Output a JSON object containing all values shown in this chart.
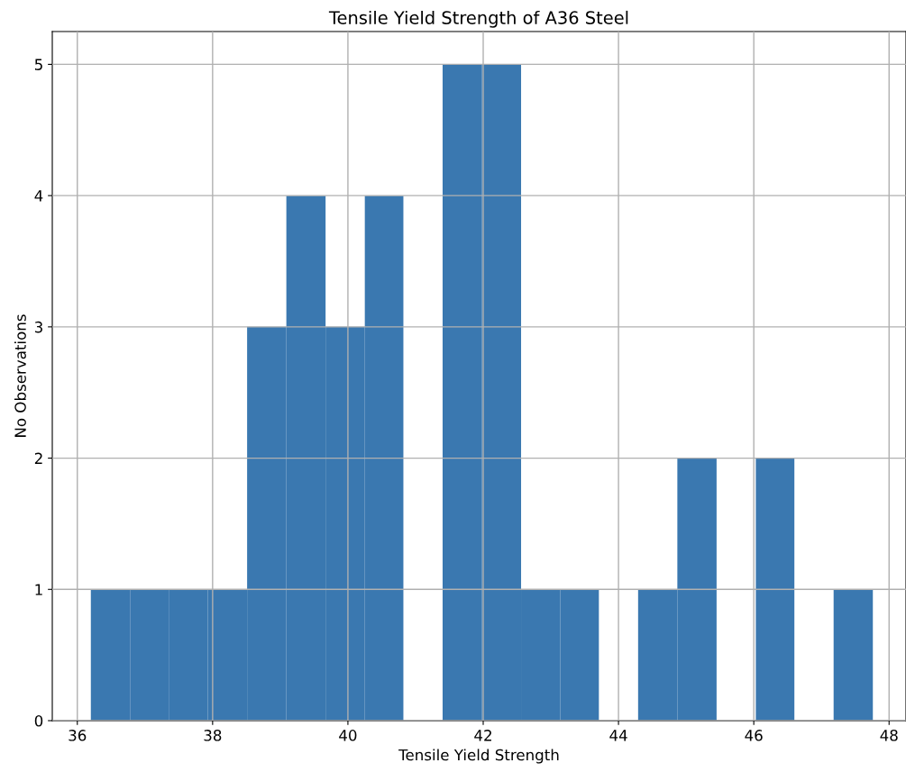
{
  "chart_data": {
    "type": "histogram",
    "title": "Tensile Yield Strength of A36 Steel",
    "xlabel": "Tensile Yield Strength",
    "ylabel": "No Observations",
    "bins": [
      36.2,
      36.78,
      37.36,
      37.93,
      38.51,
      39.09,
      39.67,
      40.25,
      40.82,
      41.4,
      41.98,
      42.56,
      43.14,
      43.71,
      44.29,
      44.87,
      45.45,
      46.03,
      46.6,
      47.18,
      47.76
    ],
    "values": [
      1,
      1,
      1,
      1,
      3,
      4,
      3,
      4,
      0,
      5,
      5,
      1,
      1,
      0,
      1,
      2,
      0,
      2,
      0,
      1
    ],
    "color": "#3a78b0",
    "xlim": [
      35.63,
      48.25
    ],
    "ylim": [
      0,
      5.25
    ],
    "xticks": [
      36,
      38,
      40,
      42,
      44,
      46,
      48
    ],
    "yticks": [
      0,
      1,
      2,
      3,
      4,
      5
    ],
    "grid": true
  }
}
